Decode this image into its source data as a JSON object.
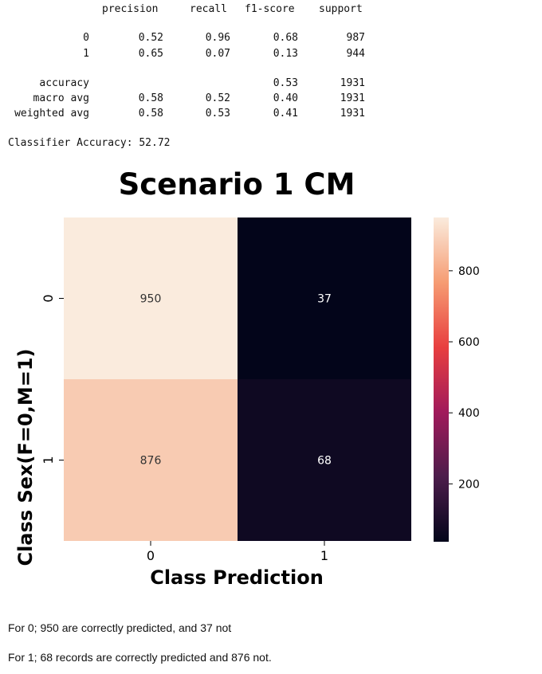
{
  "report": {
    "headers": [
      "precision",
      "recall",
      "f1-score",
      "support"
    ],
    "rows": [
      {
        "label": "0",
        "precision": "0.52",
        "recall": "0.96",
        "f1": "0.68",
        "support": "987"
      },
      {
        "label": "1",
        "precision": "0.65",
        "recall": "0.07",
        "f1": "0.13",
        "support": "944"
      },
      {
        "label": "accuracy",
        "precision": "",
        "recall": "",
        "f1": "0.53",
        "support": "1931"
      },
      {
        "label": "macro avg",
        "precision": "0.58",
        "recall": "0.52",
        "f1": "0.40",
        "support": "1931"
      },
      {
        "label": "weighted avg",
        "precision": "0.58",
        "recall": "0.53",
        "f1": "0.41",
        "support": "1931"
      }
    ],
    "accuracy_line": "Classifier Accuracy: 52.72"
  },
  "chart_data": {
    "type": "heatmap",
    "title": "Scenario 1 CM",
    "xlabel": "Class Prediction",
    "ylabel": "Class Sex(F=0,M=1)",
    "x_categories": [
      "0",
      "1"
    ],
    "y_categories": [
      "0",
      "1"
    ],
    "values": [
      [
        950,
        37
      ],
      [
        876,
        68
      ]
    ],
    "colorbar": {
      "min": 37,
      "max": 950,
      "ticks": [
        200,
        400,
        600,
        800
      ]
    },
    "colormap": [
      "#03051a",
      "#4c1d4b",
      "#a11a5b",
      "#e83f3f",
      "#f69c73",
      "#faebdd"
    ]
  },
  "notes": [
    "For 0; 950 are correctly predicted, and 37 not",
    "For 1; 68 records are correctly predicted and 876 not."
  ]
}
